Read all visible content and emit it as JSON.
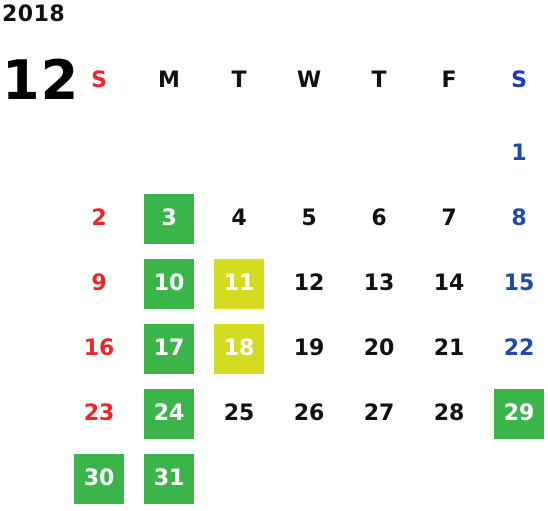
{
  "header": {
    "year": "2018",
    "month": "12"
  },
  "weekdays": [
    "S",
    "M",
    "T",
    "W",
    "T",
    "F",
    "S"
  ],
  "colors": {
    "sunday": "#e8282b",
    "saturday": "#1f4aa8",
    "highlight_green": "#3bb54a",
    "highlight_lime": "#d4dc22"
  },
  "weeks": [
    [
      {
        "day": ""
      },
      {
        "day": ""
      },
      {
        "day": ""
      },
      {
        "day": ""
      },
      {
        "day": ""
      },
      {
        "day": ""
      },
      {
        "day": "1",
        "highlight": ""
      }
    ],
    [
      {
        "day": "2",
        "highlight": ""
      },
      {
        "day": "3",
        "highlight": "green"
      },
      {
        "day": "4",
        "highlight": ""
      },
      {
        "day": "5",
        "highlight": ""
      },
      {
        "day": "6",
        "highlight": ""
      },
      {
        "day": "7",
        "highlight": ""
      },
      {
        "day": "8",
        "highlight": ""
      }
    ],
    [
      {
        "day": "9",
        "highlight": ""
      },
      {
        "day": "10",
        "highlight": "green"
      },
      {
        "day": "11",
        "highlight": "lime"
      },
      {
        "day": "12",
        "highlight": ""
      },
      {
        "day": "13",
        "highlight": ""
      },
      {
        "day": "14",
        "highlight": ""
      },
      {
        "day": "15",
        "highlight": ""
      }
    ],
    [
      {
        "day": "16",
        "highlight": ""
      },
      {
        "day": "17",
        "highlight": "green"
      },
      {
        "day": "18",
        "highlight": "lime"
      },
      {
        "day": "19",
        "highlight": ""
      },
      {
        "day": "20",
        "highlight": ""
      },
      {
        "day": "21",
        "highlight": ""
      },
      {
        "day": "22",
        "highlight": ""
      }
    ],
    [
      {
        "day": "23",
        "highlight": ""
      },
      {
        "day": "24",
        "highlight": "green"
      },
      {
        "day": "25",
        "highlight": ""
      },
      {
        "day": "26",
        "highlight": ""
      },
      {
        "day": "27",
        "highlight": ""
      },
      {
        "day": "28",
        "highlight": ""
      },
      {
        "day": "29",
        "highlight": "green"
      }
    ],
    [
      {
        "day": "30",
        "highlight": "green"
      },
      {
        "day": "31",
        "highlight": "green"
      },
      {
        "day": ""
      },
      {
        "day": ""
      },
      {
        "day": ""
      },
      {
        "day": ""
      },
      {
        "day": ""
      }
    ]
  ]
}
